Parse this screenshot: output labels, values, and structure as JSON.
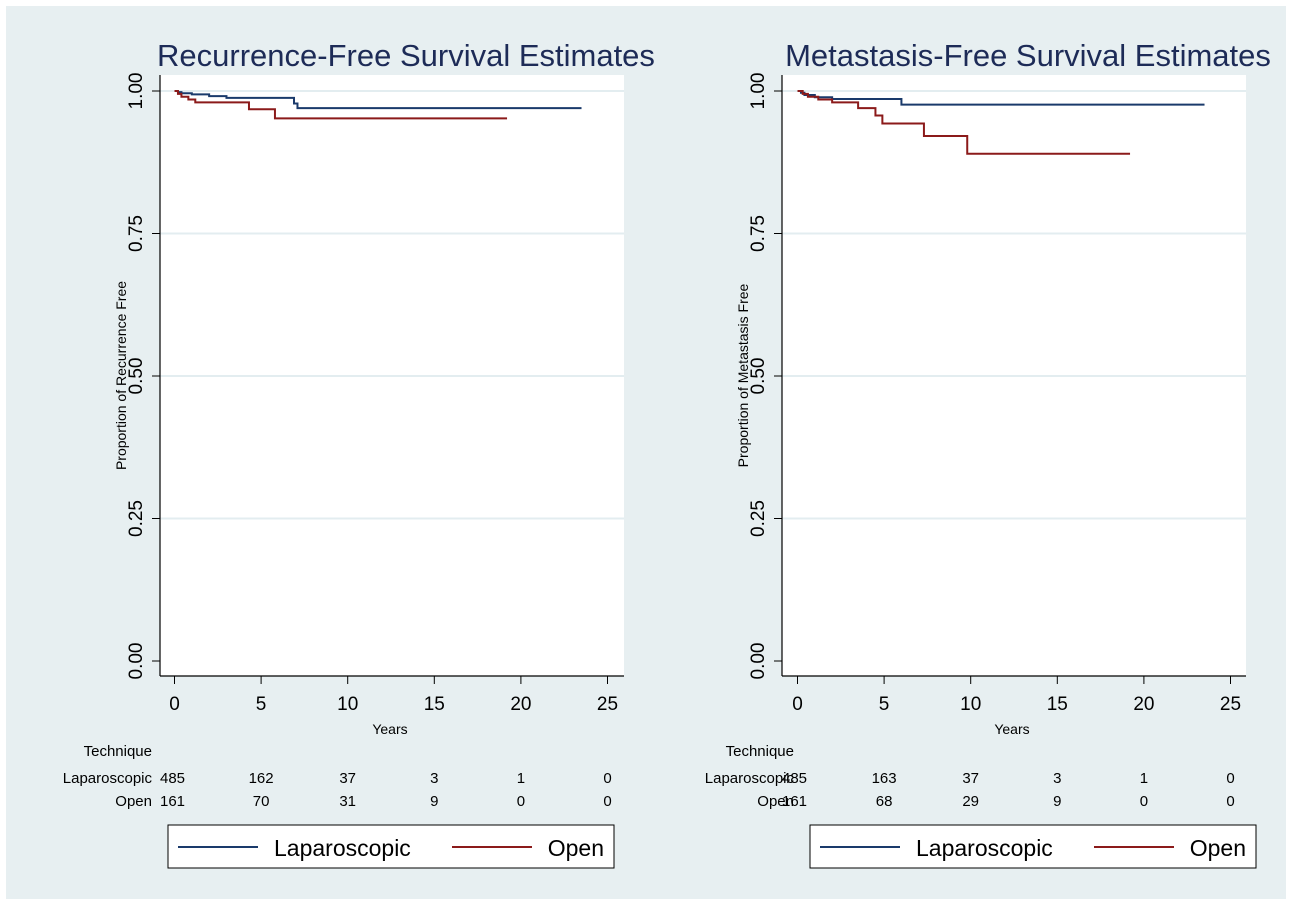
{
  "figure": {
    "background": "#e7eff1",
    "plot_background": "#ffffff",
    "grid_color": "#e3edf0",
    "title_color": "#1d2b57",
    "colors": {
      "Laparoscopic": "#1a3a6b",
      "Open": "#8b1a1a"
    }
  },
  "chart_data": [
    {
      "type": "line",
      "step": true,
      "title": "Recurrence-Free Survival Estimates",
      "xlabel": "Years",
      "ylabel": "Proportion of Recurrence Free",
      "xlim": [
        0,
        25
      ],
      "ylim": [
        0,
        1
      ],
      "xticks": [
        "0",
        "5",
        "10",
        "15",
        "20",
        "25"
      ],
      "yticks": [
        "0.00",
        "0.25",
        "0.50",
        "0.75",
        "1.00"
      ],
      "grid": true,
      "legend": "bottom",
      "series": [
        {
          "name": "Laparoscopic",
          "x": [
            0,
            0.2,
            0.4,
            1.0,
            2.0,
            3.0,
            6.9,
            7.1,
            23.5
          ],
          "y": [
            1.0,
            0.998,
            0.996,
            0.994,
            0.991,
            0.988,
            0.978,
            0.97,
            0.97
          ]
        },
        {
          "name": "Open",
          "x": [
            0,
            0.2,
            0.4,
            0.8,
            1.2,
            2.5,
            4.3,
            5.8,
            19.2
          ],
          "y": [
            1.0,
            0.995,
            0.99,
            0.985,
            0.98,
            0.98,
            0.968,
            0.952,
            0.952
          ]
        }
      ],
      "risk_table": {
        "header": "Technique",
        "rows": [
          {
            "label": "Laparoscopic",
            "values": [
              "485",
              "162",
              "37",
              "3",
              "1",
              "0"
            ]
          },
          {
            "label": "Open",
            "values": [
              "161",
              "70",
              "31",
              "9",
              "0",
              "0"
            ]
          }
        ]
      }
    },
    {
      "type": "line",
      "step": true,
      "title": "Metastasis-Free Survival Estimates",
      "xlabel": "Years",
      "ylabel": "Proportion of Metastasis Free",
      "xlim": [
        0,
        25
      ],
      "ylim": [
        0,
        1
      ],
      "xticks": [
        "0",
        "5",
        "10",
        "15",
        "20",
        "25"
      ],
      "yticks": [
        "0.00",
        "0.25",
        "0.50",
        "0.75",
        "1.00"
      ],
      "grid": true,
      "legend": "bottom",
      "series": [
        {
          "name": "Laparoscopic",
          "x": [
            0,
            0.2,
            0.4,
            1.0,
            2.0,
            6.0,
            23.5
          ],
          "y": [
            1.0,
            0.997,
            0.993,
            0.989,
            0.986,
            0.976,
            0.976
          ]
        },
        {
          "name": "Open",
          "x": [
            0,
            0.3,
            0.6,
            1.2,
            2.0,
            3.5,
            4.5,
            4.9,
            7.3,
            9.8,
            19.2
          ],
          "y": [
            1.0,
            0.995,
            0.99,
            0.985,
            0.98,
            0.97,
            0.957,
            0.943,
            0.921,
            0.89,
            0.89
          ]
        }
      ],
      "risk_table": {
        "header": "Technique",
        "rows": [
          {
            "label": "Laparoscopic",
            "values": [
              "485",
              "163",
              "37",
              "3",
              "1",
              "0"
            ]
          },
          {
            "label": "Open",
            "values": [
              "161",
              "68",
              "29",
              "9",
              "0",
              "0"
            ]
          }
        ]
      }
    }
  ]
}
